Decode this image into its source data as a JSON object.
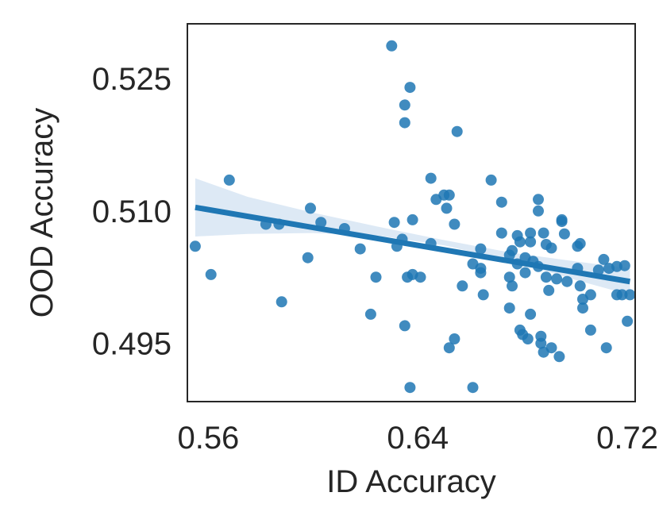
{
  "chart_data": {
    "type": "scatter",
    "xlabel": "ID Accuracy",
    "ylabel": "OOD Accuracy",
    "xlim": [
      0.552,
      0.723
    ],
    "ylim": [
      0.4884,
      0.5312
    ],
    "xticks": [
      0.56,
      0.64,
      0.72
    ],
    "xtick_labels": [
      "0.56",
      "0.64",
      "0.72"
    ],
    "yticks": [
      0.495,
      0.51,
      0.525
    ],
    "ytick_labels": [
      "0.495",
      "0.510",
      "0.525"
    ],
    "grid": false,
    "colors": {
      "points": "#1f77b4",
      "line": "#1f77b4",
      "band": "#c6dbef",
      "frame": "#262626"
    },
    "points": [
      [
        0.63,
        0.5287
      ],
      [
        0.637,
        0.524
      ],
      [
        0.635,
        0.522
      ],
      [
        0.635,
        0.52
      ],
      [
        0.655,
        0.519
      ],
      [
        0.568,
        0.5135
      ],
      [
        0.645,
        0.5137
      ],
      [
        0.652,
        0.5118
      ],
      [
        0.647,
        0.5113
      ],
      [
        0.65,
        0.5118
      ],
      [
        0.668,
        0.5135
      ],
      [
        0.672,
        0.511
      ],
      [
        0.686,
        0.5113
      ],
      [
        0.686,
        0.51
      ],
      [
        0.651,
        0.5103
      ],
      [
        0.599,
        0.5103
      ],
      [
        0.638,
        0.509
      ],
      [
        0.654,
        0.5085
      ],
      [
        0.582,
        0.5085
      ],
      [
        0.587,
        0.5085
      ],
      [
        0.603,
        0.5087
      ],
      [
        0.612,
        0.508
      ],
      [
        0.631,
        0.5087
      ],
      [
        0.634,
        0.5068
      ],
      [
        0.695,
        0.509
      ],
      [
        0.695,
        0.5088
      ],
      [
        0.672,
        0.5075
      ],
      [
        0.678,
        0.5072
      ],
      [
        0.683,
        0.5075
      ],
      [
        0.688,
        0.5075
      ],
      [
        0.679,
        0.5065
      ],
      [
        0.683,
        0.5065
      ],
      [
        0.696,
        0.5074
      ],
      [
        0.702,
        0.5063
      ],
      [
        0.701,
        0.506
      ],
      [
        0.555,
        0.506
      ],
      [
        0.618,
        0.5057
      ],
      [
        0.645,
        0.5063
      ],
      [
        0.632,
        0.506
      ],
      [
        0.664,
        0.5057
      ],
      [
        0.676,
        0.5055
      ],
      [
        0.689,
        0.5062
      ],
      [
        0.691,
        0.5058
      ],
      [
        0.598,
        0.5047
      ],
      [
        0.675,
        0.505
      ],
      [
        0.681,
        0.5047
      ],
      [
        0.711,
        0.5045
      ],
      [
        0.719,
        0.5038
      ],
      [
        0.661,
        0.504
      ],
      [
        0.664,
        0.5035
      ],
      [
        0.678,
        0.504
      ],
      [
        0.684,
        0.5043
      ],
      [
        0.686,
        0.5037
      ],
      [
        0.701,
        0.5035
      ],
      [
        0.709,
        0.5033
      ],
      [
        0.713,
        0.5035
      ],
      [
        0.716,
        0.5037
      ],
      [
        0.561,
        0.5028
      ],
      [
        0.624,
        0.5025
      ],
      [
        0.636,
        0.5025
      ],
      [
        0.638,
        0.5028
      ],
      [
        0.641,
        0.5025
      ],
      [
        0.664,
        0.503
      ],
      [
        0.675,
        0.5025
      ],
      [
        0.681,
        0.503
      ],
      [
        0.689,
        0.5025
      ],
      [
        0.693,
        0.5023
      ],
      [
        0.697,
        0.502
      ],
      [
        0.702,
        0.5015
      ],
      [
        0.657,
        0.5015
      ],
      [
        0.676,
        0.5015
      ],
      [
        0.665,
        0.5005
      ],
      [
        0.69,
        0.501
      ],
      [
        0.703,
        0.5
      ],
      [
        0.706,
        0.5005
      ],
      [
        0.718,
        0.5005
      ],
      [
        0.721,
        0.5005
      ],
      [
        0.716,
        0.5005
      ],
      [
        0.703,
        0.499
      ],
      [
        0.683,
        0.4983
      ],
      [
        0.588,
        0.4997
      ],
      [
        0.675,
        0.499
      ],
      [
        0.622,
        0.4983
      ],
      [
        0.635,
        0.497
      ],
      [
        0.679,
        0.4965
      ],
      [
        0.68,
        0.496
      ],
      [
        0.687,
        0.4958
      ],
      [
        0.706,
        0.4965
      ],
      [
        0.72,
        0.4975
      ],
      [
        0.682,
        0.4955
      ],
      [
        0.654,
        0.4955
      ],
      [
        0.652,
        0.4945
      ],
      [
        0.687,
        0.495
      ],
      [
        0.691,
        0.4945
      ],
      [
        0.688,
        0.494
      ],
      [
        0.694,
        0.4935
      ],
      [
        0.712,
        0.4945
      ],
      [
        0.637,
        0.49
      ],
      [
        0.661,
        0.49
      ]
    ],
    "regression": {
      "x": [
        0.555,
        0.721
      ],
      "y": [
        0.5104,
        0.502
      ]
    },
    "confidence_band": {
      "x": [
        0.555,
        0.575,
        0.6,
        0.625,
        0.65,
        0.675,
        0.7,
        0.721
      ],
      "upper": [
        0.5137,
        0.5116,
        0.5098,
        0.5082,
        0.5067,
        0.5053,
        0.5043,
        0.5035
      ],
      "lower": [
        0.5071,
        0.5074,
        0.5075,
        0.5072,
        0.5061,
        0.5044,
        0.5022,
        0.5005
      ]
    }
  }
}
